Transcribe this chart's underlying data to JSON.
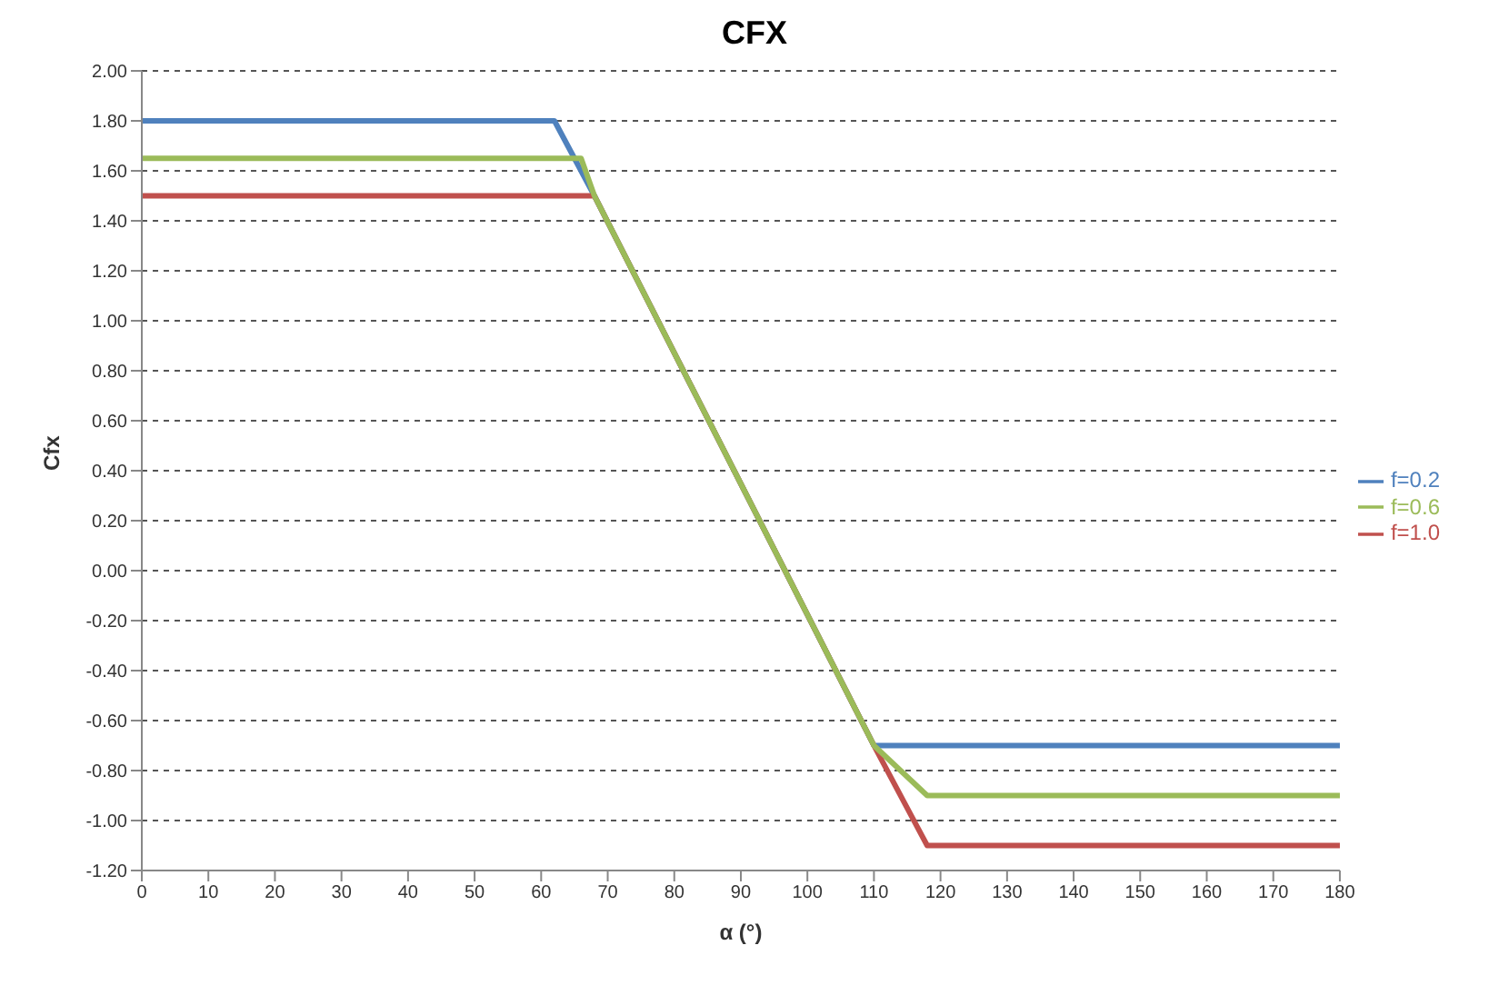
{
  "chart_data": {
    "type": "line",
    "title": "CFX",
    "xlabel": "α (°)",
    "ylabel": "Cfx",
    "xlim": [
      0,
      180
    ],
    "xticks": [
      0,
      10,
      20,
      30,
      40,
      50,
      60,
      70,
      80,
      90,
      100,
      110,
      120,
      130,
      140,
      150,
      160,
      170,
      180
    ],
    "ylim": [
      -1.2,
      2.0
    ],
    "yticks": [
      {
        "value": -1.2,
        "label": "-1.20"
      },
      {
        "value": -1.0,
        "label": "-1.00"
      },
      {
        "value": -0.8,
        "label": "-0.80"
      },
      {
        "value": -0.6,
        "label": "-0.60"
      },
      {
        "value": -0.4,
        "label": "-0.40"
      },
      {
        "value": -0.2,
        "label": "-0.20"
      },
      {
        "value": 0,
        "label": "0.00"
      },
      {
        "value": 0.2,
        "label": "0.20"
      },
      {
        "value": 0.4,
        "label": "0.40"
      },
      {
        "value": 0.6,
        "label": "0.60"
      },
      {
        "value": 0.8,
        "label": "0.80"
      },
      {
        "value": 1.0,
        "label": "1.00"
      },
      {
        "value": 1.2,
        "label": "1.20"
      },
      {
        "value": 1.4,
        "label": "1.40"
      },
      {
        "value": 1.6,
        "label": "1.60"
      },
      {
        "value": 1.8,
        "label": "1.80"
      },
      {
        "value": 2.0,
        "label": "2.00"
      }
    ],
    "grid": "y",
    "legend": "right",
    "marker": "none",
    "line_style": "solid",
    "series": [
      {
        "name": "f=0.2",
        "color": "#4f81bd",
        "x": [
          0,
          62,
          68,
          110,
          180
        ],
        "values": [
          1.8,
          1.8,
          1.5,
          -0.7,
          -0.7
        ]
      },
      {
        "name": "f=1.0",
        "color": "#c0504d",
        "x": [
          0,
          68,
          110,
          118,
          180
        ],
        "values": [
          1.5,
          1.5,
          -0.7,
          -1.1,
          -1.1
        ]
      },
      {
        "name": "f=0.6",
        "color": "#9bbb59",
        "x": [
          0,
          66,
          68,
          110,
          118,
          180
        ],
        "values": [
          1.65,
          1.65,
          1.5,
          -0.7,
          -0.9,
          -0.9
        ]
      }
    ]
  }
}
